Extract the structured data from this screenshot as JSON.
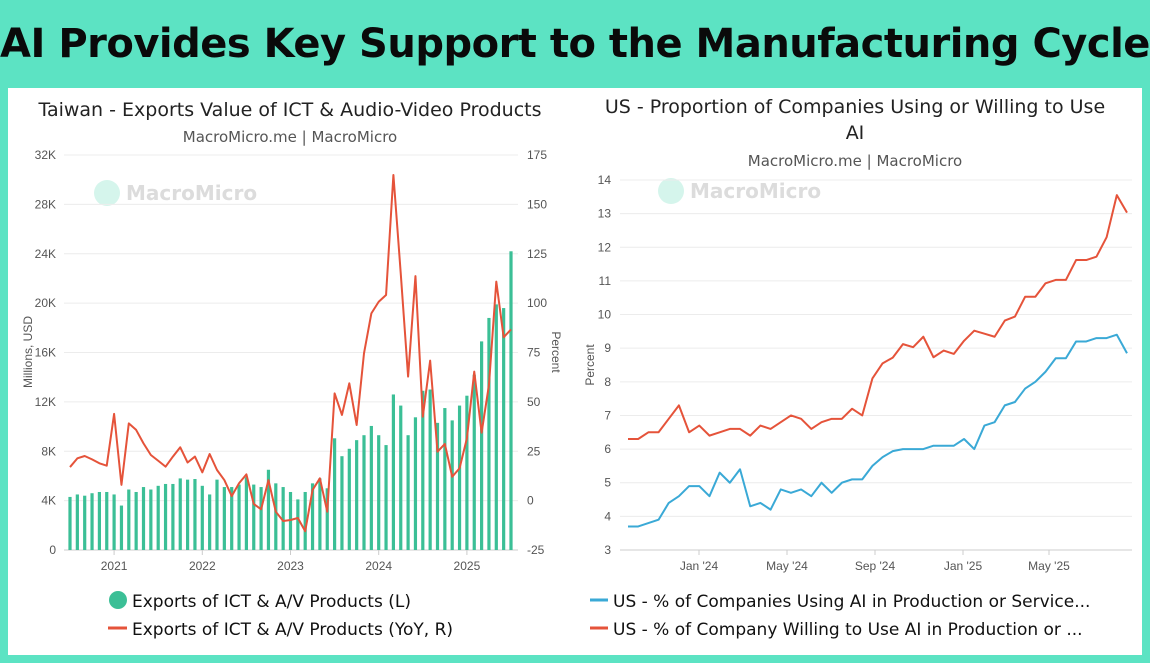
{
  "page_title": "AI Provides Key Support to the Manufacturing Cycle",
  "colors": {
    "frame": "#5ce3c3",
    "bar": "#3bbf96",
    "red": "#e5533a",
    "blue": "#3aa9d6"
  },
  "watermark": "MacroMicro",
  "chart_data": [
    {
      "type": "bar+line",
      "title": "Taiwan - Exports Value of ICT & Audio-Video Products",
      "subtitle": "MacroMicro.me | MacroMicro",
      "ylabel_left": "Millions, USD",
      "ylabel_right": "Percent",
      "ylim_left": [
        0,
        32000
      ],
      "ylim_right": [
        -25,
        175
      ],
      "yticks_left": [
        "0",
        "4K",
        "8K",
        "12K",
        "16K",
        "20K",
        "24K",
        "28K",
        "32K"
      ],
      "yticks_right": [
        "-25",
        "0",
        "25",
        "50",
        "75",
        "100",
        "125",
        "150",
        "175"
      ],
      "x_start": "2020-07",
      "x_end": "2025-07",
      "xticks": [
        {
          "label": "2021",
          "index": 6
        },
        {
          "label": "2022",
          "index": 18
        },
        {
          "label": "2023",
          "index": 30
        },
        {
          "label": "2024",
          "index": 42
        },
        {
          "label": "2025",
          "index": 54
        }
      ],
      "series": [
        {
          "name": "Exports of ICT & A/V Products (L)",
          "type": "bar",
          "unit": "thousand millions USD",
          "values": [
            4.3,
            4.5,
            4.4,
            4.6,
            4.7,
            4.7,
            4.5,
            3.6,
            4.9,
            4.7,
            5.1,
            4.9,
            5.2,
            5.35,
            5.35,
            5.8,
            5.7,
            5.75,
            5.2,
            4.5,
            5.7,
            5.1,
            5.1,
            5.3,
            5.9,
            5.3,
            5.1,
            6.5,
            5.4,
            5.1,
            4.7,
            4.1,
            4.7,
            5.4,
            5.8,
            5.0,
            9.05,
            7.6,
            8.2,
            8.9,
            9.3,
            10.05,
            9.3,
            8.5,
            12.6,
            11.7,
            9.3,
            10.75,
            12.9,
            13.0,
            10.3,
            11.5,
            10.5,
            11.7,
            12.5,
            14.2,
            16.9,
            18.8,
            19.9,
            19.6,
            24.2
          ]
        },
        {
          "name": "Exports of ICT & A/V Products (YoY, R)",
          "type": "line",
          "unit": "percent",
          "values": [
            17,
            21.4,
            22.6,
            20.9,
            18.9,
            17.7,
            43.9,
            8.0,
            39.1,
            35.8,
            29.0,
            23.1,
            20.2,
            17.2,
            22.3,
            27.0,
            19.3,
            22.3,
            14.3,
            23.6,
            15.5,
            10.4,
            2.3,
            8.8,
            13.3,
            -1.7,
            -4.4,
            10.4,
            -5.6,
            -10.3,
            -9.8,
            -8.8,
            -15.5,
            5.4,
            11.3,
            -5.6,
            54.3,
            43.4,
            59.4,
            38.3,
            74.6,
            94.8,
            100.7,
            104.1,
            164.9,
            115,
            62.8,
            113.7,
            42.5,
            70.9,
            24.8,
            28.7,
            12.1,
            16.4,
            31.5,
            65.3,
            34.4,
            58.5,
            110.9,
            82.7,
            86.7
          ]
        }
      ]
    },
    {
      "type": "line",
      "title_line1": "US - Proportion of Companies Using or Willing to Use",
      "title_line2": "AI",
      "subtitle": "MacroMicro.me | MacroMicro",
      "ylabel": "Percent",
      "ylim": [
        3,
        14
      ],
      "yticks": [
        "3",
        "4",
        "5",
        "6",
        "7",
        "8",
        "9",
        "10",
        "11",
        "12",
        "13",
        "14"
      ],
      "xticks": [
        {
          "label": "Jan '24",
          "index": 7.1
        },
        {
          "label": "May '24",
          "index": 15.9
        },
        {
          "label": "Sep '24",
          "index": 24.7
        },
        {
          "label": "Jan '25",
          "index": 33.5
        },
        {
          "label": "May '25",
          "index": 42.1
        }
      ],
      "series": [
        {
          "name": "US - % of Companies Using AI in Production or Service...",
          "color": "#3aa9d6",
          "values": [
            3.7,
            3.7,
            3.8,
            3.9,
            4.4,
            4.6,
            4.9,
            4.9,
            4.6,
            5.3,
            5.0,
            5.4,
            4.3,
            4.4,
            4.2,
            4.8,
            4.7,
            4.8,
            4.6,
            5.0,
            4.7,
            5.0,
            5.1,
            5.1,
            5.5,
            5.76,
            5.94,
            6.0,
            6.0,
            6.0,
            6.1,
            6.1,
            6.1,
            6.3,
            6.0,
            6.7,
            6.8,
            7.3,
            7.4,
            7.8,
            8.0,
            8.3,
            8.7,
            8.7,
            9.2,
            9.2,
            9.3,
            9.3,
            9.4,
            8.85
          ]
        },
        {
          "name": "US - % of Company Willing to Use AI in Production or ...",
          "color": "#e5533a",
          "values": [
            6.3,
            6.3,
            6.5,
            6.5,
            6.9,
            7.3,
            6.5,
            6.7,
            6.4,
            6.5,
            6.6,
            6.6,
            6.4,
            6.7,
            6.6,
            6.8,
            7.0,
            6.9,
            6.6,
            6.8,
            6.9,
            6.9,
            7.2,
            7.0,
            8.1,
            8.55,
            8.72,
            9.12,
            9.03,
            9.34,
            8.73,
            8.93,
            8.83,
            9.22,
            9.52,
            9.43,
            9.34,
            9.82,
            9.94,
            10.53,
            10.53,
            10.93,
            11.03,
            11.03,
            11.62,
            11.62,
            11.72,
            12.3,
            13.55,
            13.03
          ]
        }
      ]
    }
  ]
}
